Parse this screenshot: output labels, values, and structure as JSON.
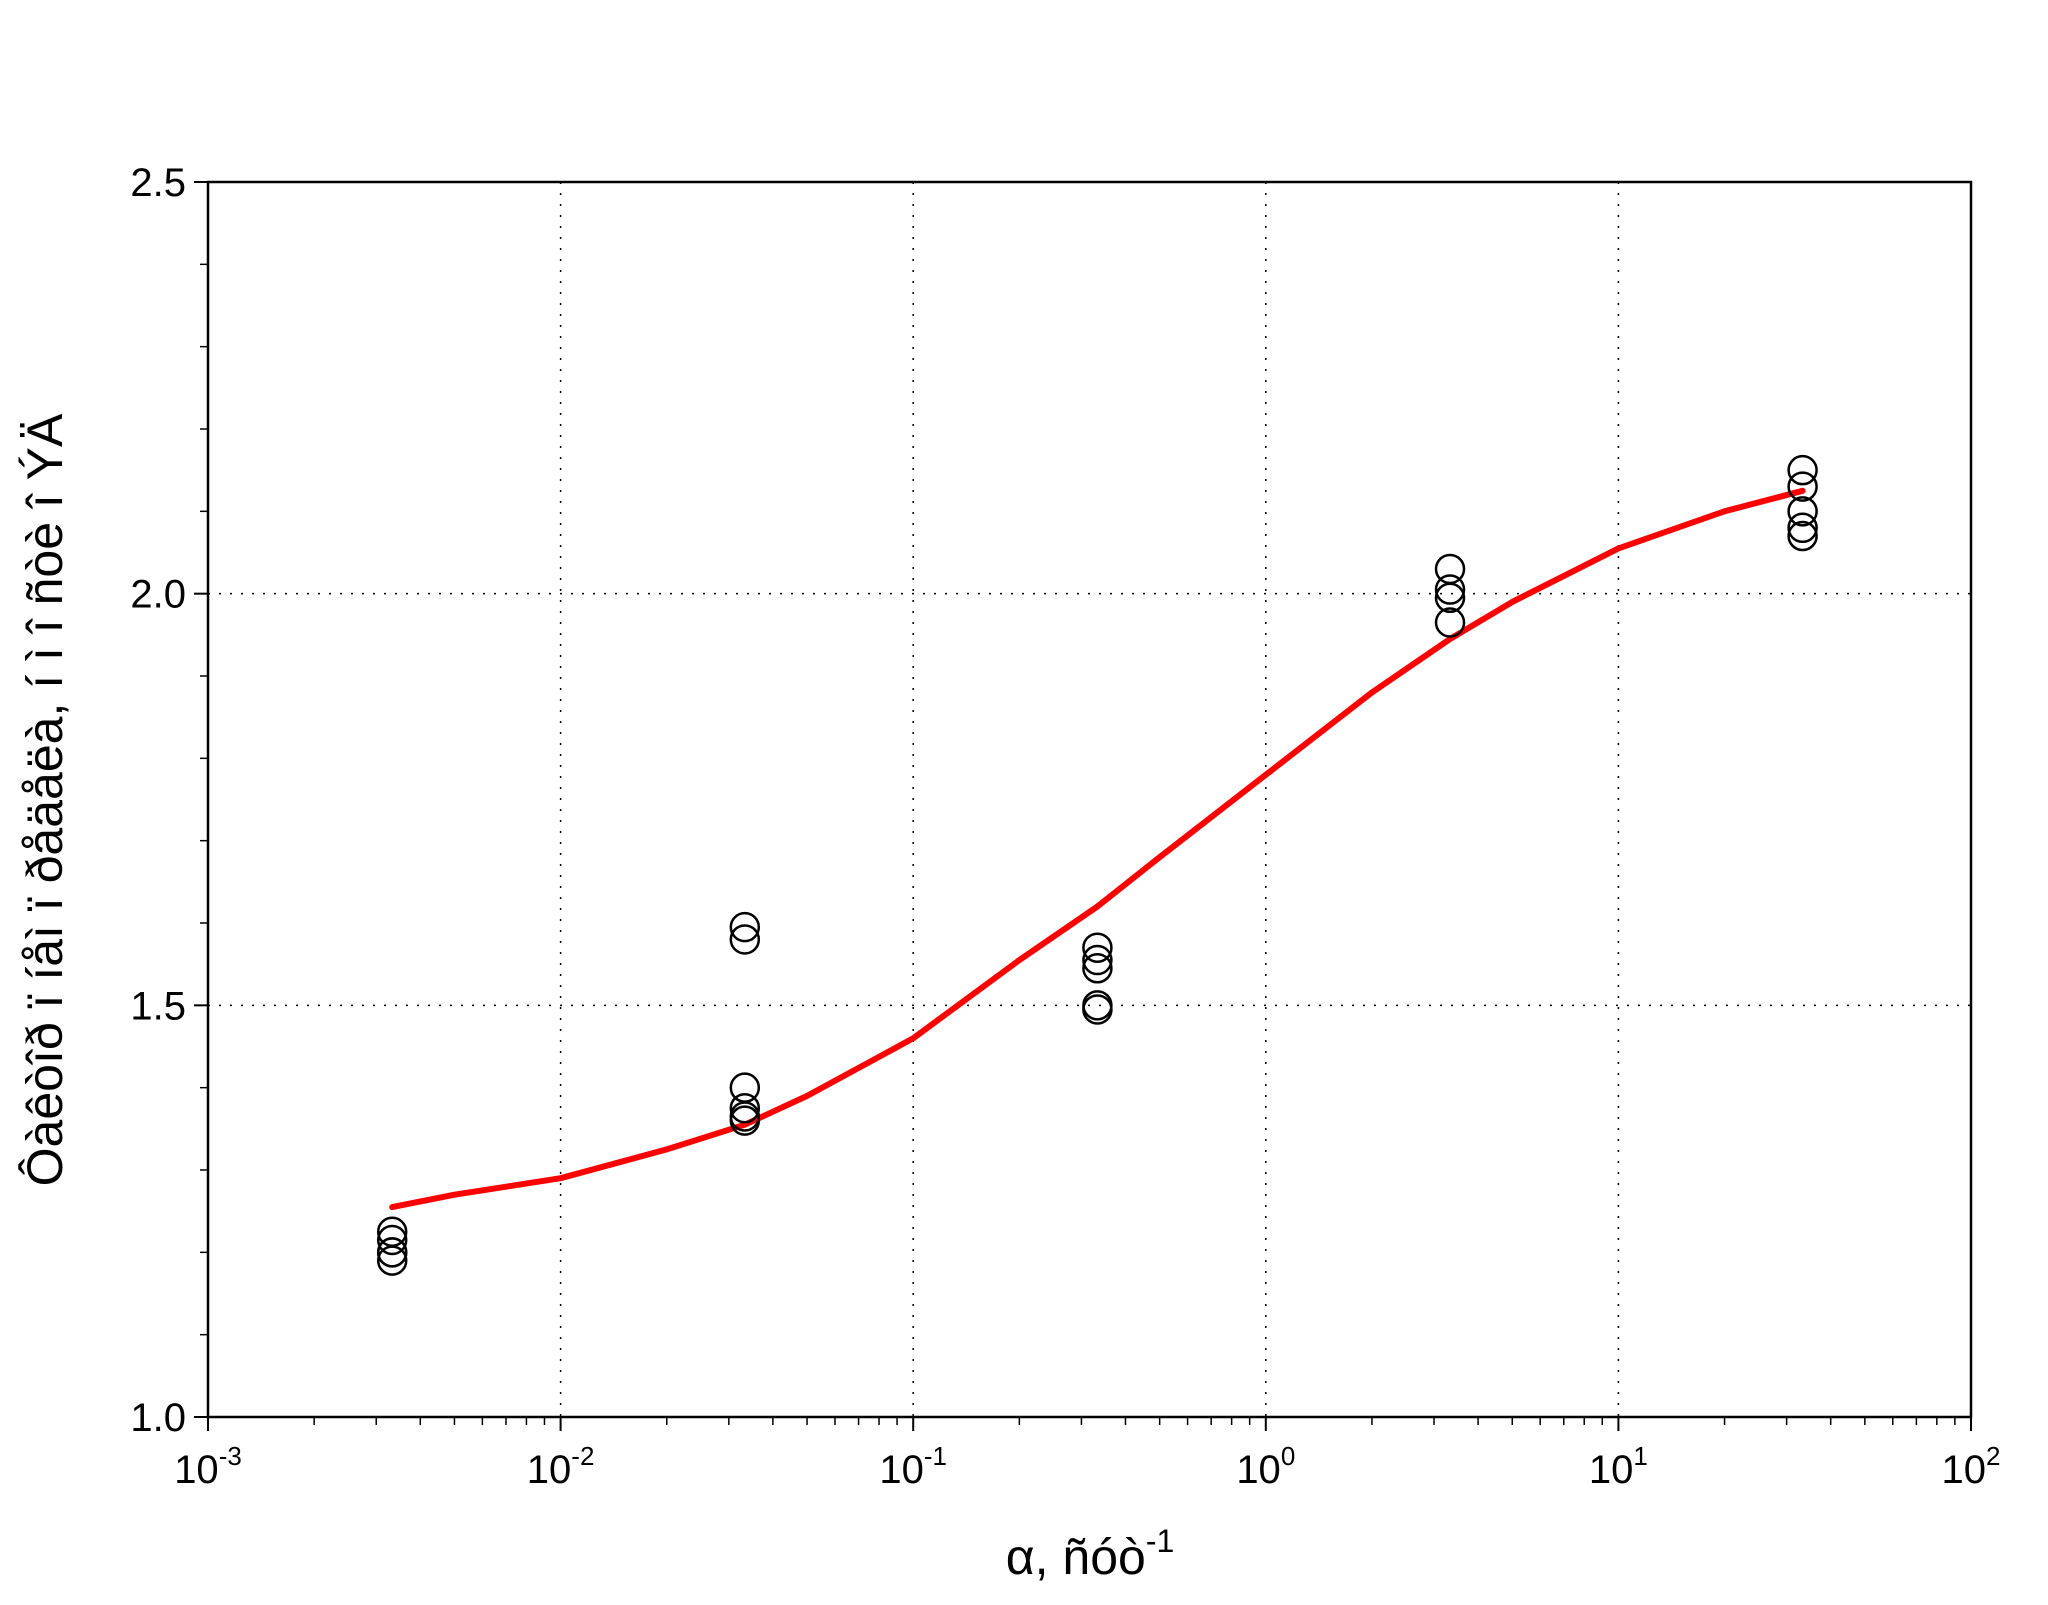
{
  "chart_data": {
    "type": "scatter",
    "xscale": "log",
    "xlim": [
      0.001,
      100
    ],
    "ylim": [
      1.0,
      2.5
    ],
    "grid": true,
    "xlabel": "α, ñóò",
    "xlabel_sup": "-1",
    "ylabel": "Ôàêòîð ï íåì ï ðåäåëà, í ì î ñòè î  ÝÄ",
    "yticks": [
      "1.0",
      "1.5",
      "2.0",
      "2.5"
    ],
    "xticks": [
      {
        "base": "10",
        "exp": "-3"
      },
      {
        "base": "10",
        "exp": "-2"
      },
      {
        "base": "10",
        "exp": "-1"
      },
      {
        "base": "10",
        "exp": "0"
      },
      {
        "base": "10",
        "exp": "1"
      },
      {
        "base": "10",
        "exp": "2"
      }
    ],
    "series": [
      {
        "kind": "points",
        "marker": "open-circle",
        "color": "#000000",
        "x": [
          0.00333,
          0.00333,
          0.00333,
          0.00333,
          0.00333,
          0.0333,
          0.0333,
          0.0333,
          0.0333,
          0.0333,
          0.0333,
          0.333,
          0.333,
          0.333,
          0.333,
          0.333,
          3.33,
          3.33,
          3.33,
          3.33,
          33.3,
          33.3,
          33.3,
          33.3,
          33.3
        ],
        "y": [
          1.19,
          1.2,
          1.215,
          1.225,
          1.2,
          1.595,
          1.58,
          1.4,
          1.375,
          1.365,
          1.36,
          1.57,
          1.555,
          1.545,
          1.5,
          1.495,
          2.03,
          2.005,
          1.995,
          1.965,
          2.15,
          2.13,
          2.1,
          2.08,
          2.07
        ]
      },
      {
        "kind": "curve",
        "color": "#ff0000",
        "x": [
          0.00333,
          0.005,
          0.01,
          0.02,
          0.0333,
          0.05,
          0.1,
          0.2,
          0.333,
          0.5,
          1,
          2,
          3.33,
          5,
          10,
          20,
          33.3
        ],
        "y": [
          1.255,
          1.27,
          1.29,
          1.325,
          1.355,
          1.39,
          1.46,
          1.555,
          1.62,
          1.68,
          1.78,
          1.88,
          1.945,
          1.99,
          2.055,
          2.1,
          2.125
        ]
      }
    ]
  }
}
